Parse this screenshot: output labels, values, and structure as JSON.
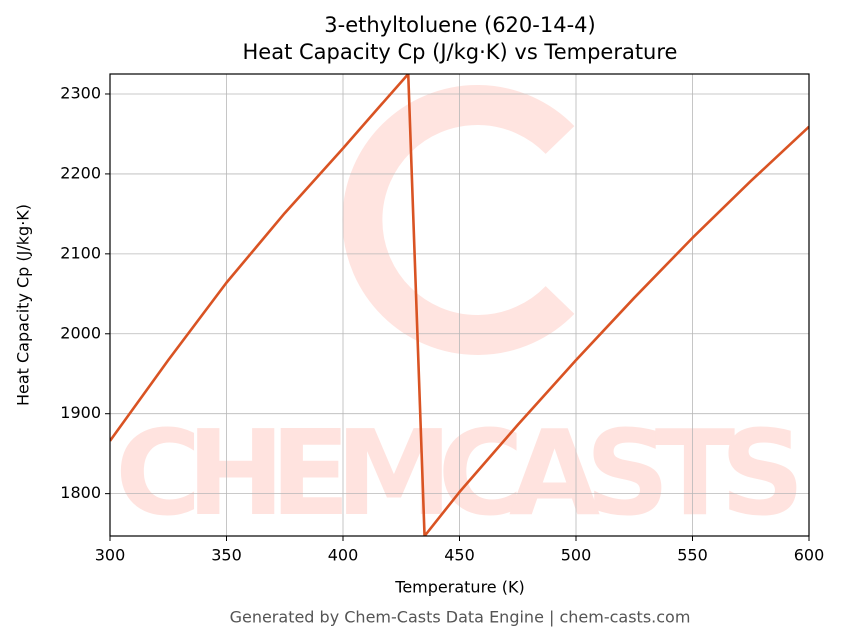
{
  "chart_data": {
    "type": "line",
    "title": "3-ethyltoluene (620-14-4)",
    "subtitle": "Heat Capacity Cp (J/kg·K) vs Temperature",
    "x_label": "Temperature (K)",
    "y_label": "Heat Capacity Cp (J/kg·K)",
    "footer": "Generated by Chem-Casts Data Engine | chem-casts.com",
    "watermark": "CHEMCASTS",
    "x": [
      300,
      325,
      350,
      375,
      400,
      415,
      428,
      435,
      450,
      475,
      500,
      525,
      550,
      575,
      600
    ],
    "series": [
      {
        "name": "Cp",
        "color": "#d95323",
        "values": [
          1866,
          1967,
          2064,
          2151,
          2232,
          2282,
          2325,
          1747,
          1802,
          1886,
          1967,
          2045,
          2120,
          2191,
          2259
        ]
      }
    ],
    "xlim": [
      300,
      600
    ],
    "xticks": [
      300,
      350,
      400,
      450,
      500,
      550,
      600
    ],
    "ylim": [
      1747,
      2325
    ],
    "yticks": [
      1800,
      1900,
      2000,
      2100,
      2200,
      2300
    ],
    "grid": true
  }
}
